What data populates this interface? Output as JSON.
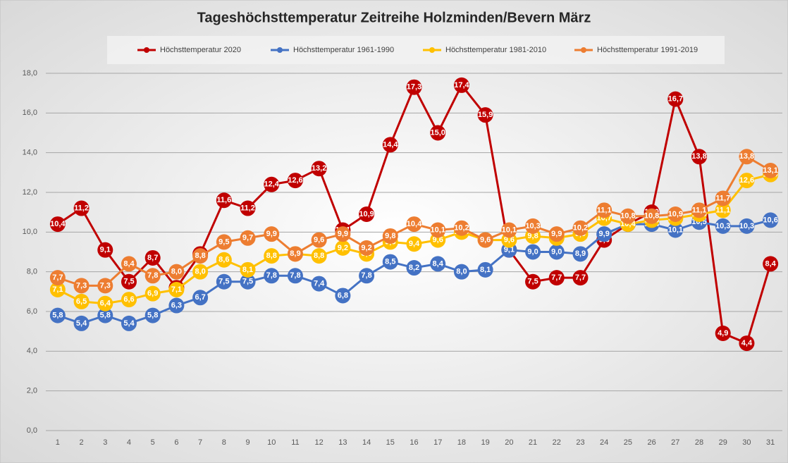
{
  "chart_data": {
    "type": "line",
    "title": "Tageshöchsttemperatur Zeitreihe Holzminden/Bevern März",
    "categories": [
      "1",
      "2",
      "3",
      "4",
      "5",
      "6",
      "7",
      "8",
      "9",
      "10",
      "11",
      "12",
      "13",
      "14",
      "15",
      "16",
      "17",
      "18",
      "19",
      "20",
      "21",
      "22",
      "23",
      "24",
      "25",
      "26",
      "27",
      "28",
      "29",
      "30",
      "31"
    ],
    "ylim": [
      0,
      18
    ],
    "yticks": [
      {
        "value": 0,
        "label": "0,0"
      },
      {
        "value": 2,
        "label": "2,0"
      },
      {
        "value": 4,
        "label": "4,0"
      },
      {
        "value": 6,
        "label": "6,0"
      },
      {
        "value": 8,
        "label": "8,0"
      },
      {
        "value": 10,
        "label": "10,0"
      },
      {
        "value": 12,
        "label": "12,0"
      },
      {
        "value": 14,
        "label": "14,0"
      },
      {
        "value": 16,
        "label": "16,0"
      },
      {
        "value": 18,
        "label": "18,0"
      }
    ],
    "grid": true,
    "legend": "top",
    "series": [
      {
        "name": "Höchsttemperatur 2020",
        "color": "#c00000",
        "values": [
          10.4,
          11.2,
          9.1,
          7.5,
          8.7,
          7.2,
          8.9,
          11.6,
          11.2,
          12.4,
          12.6,
          13.2,
          10.1,
          10.9,
          14.4,
          17.3,
          15.0,
          17.4,
          15.9,
          9.1,
          7.5,
          7.7,
          7.7,
          9.6,
          10.4,
          11.0,
          16.7,
          13.8,
          4.9,
          4.4,
          8.4
        ],
        "value_labels": [
          "10,4",
          "11,2",
          "9,1",
          "7,5",
          "8,7",
          "7,2",
          "8,9",
          "11,6",
          "11,2",
          "12,4",
          "12,6",
          "13,2",
          "10,1",
          "10,9",
          "14,4",
          "17,3",
          "15,0",
          "17,4",
          "15,9",
          "9,1",
          "7,5",
          "7,7",
          "7,7",
          "9,6",
          "10,4",
          "11,0",
          "16,7",
          "13,8",
          "4,9",
          "4,4",
          "8,4"
        ]
      },
      {
        "name": "Höchsttemperatur 1961-1990",
        "color": "#4472c4",
        "values": [
          5.8,
          5.4,
          5.8,
          5.4,
          5.8,
          6.3,
          6.7,
          7.5,
          7.5,
          7.8,
          7.8,
          7.4,
          6.8,
          7.8,
          8.5,
          8.2,
          8.4,
          8.0,
          8.1,
          9.1,
          9.0,
          9.0,
          8.9,
          9.9,
          10.4,
          10.4,
          10.1,
          10.5,
          10.3,
          10.3,
          10.6
        ],
        "value_labels": [
          "5,8",
          "5,4",
          "5,8",
          "5,4",
          "5,8",
          "6,3",
          "6,7",
          "7,5",
          "7,5",
          "7,8",
          "7,8",
          "7,4",
          "6,8",
          "7,8",
          "8,5",
          "8,2",
          "8,4",
          "8,0",
          "8,1",
          "9,1",
          "9,0",
          "9,0",
          "8,9",
          "9,9",
          "10,4",
          "10,4",
          "10,1",
          "10,5",
          "10,3",
          "10,3",
          "10,6"
        ]
      },
      {
        "name": "Höchsttemperatur 1981-2010",
        "color": "#ffc000",
        "values": [
          7.1,
          6.5,
          6.4,
          6.6,
          6.9,
          7.1,
          8.0,
          8.6,
          8.1,
          8.8,
          8.9,
          8.8,
          9.2,
          8.9,
          9.5,
          9.4,
          9.6,
          10.0,
          9.6,
          9.6,
          9.8,
          9.7,
          9.9,
          10.7,
          10.4,
          10.6,
          10.7,
          10.9,
          11.1,
          12.6,
          12.9
        ],
        "value_labels": [
          "7,1",
          "6,5",
          "6,4",
          "6,6",
          "6,9",
          "7,1",
          "8,0",
          "8,6",
          "8,1",
          "8,8",
          "8,9",
          "8,8",
          "9,2",
          "8,9",
          "9,5",
          "9,4",
          "9,6",
          "10,0",
          "9,6",
          "9,6",
          "9,8",
          "9,7",
          "9,9",
          "10,7",
          "10,4",
          "10,6",
          "10,7",
          "10,9",
          "11,1",
          "12,6",
          "12,9"
        ]
      },
      {
        "name": "Höchsttemperatur 1991-2019",
        "color": "#ed7d31",
        "values": [
          7.7,
          7.3,
          7.3,
          8.4,
          7.8,
          8.0,
          8.8,
          9.5,
          9.7,
          9.9,
          8.9,
          9.6,
          9.9,
          9.2,
          9.8,
          10.4,
          10.1,
          10.2,
          9.6,
          10.1,
          10.3,
          9.9,
          10.2,
          11.1,
          10.8,
          10.8,
          10.9,
          11.1,
          11.7,
          13.8,
          13.1
        ],
        "value_labels": [
          "7,7",
          "7,3",
          "7,3",
          "8,4",
          "7,8",
          "8,0",
          "8,8",
          "9,5",
          "9,7",
          "9,9",
          "8,9",
          "9,6",
          "9,9",
          "9,2",
          "9,8",
          "10,4",
          "10,1",
          "10,2",
          "9,6",
          "10,1",
          "10,3",
          "9,9",
          "10,2",
          "11,1",
          "10,8",
          "10,8",
          "10,9",
          "11,1",
          "11,7",
          "13,8",
          "13,1"
        ]
      }
    ]
  }
}
